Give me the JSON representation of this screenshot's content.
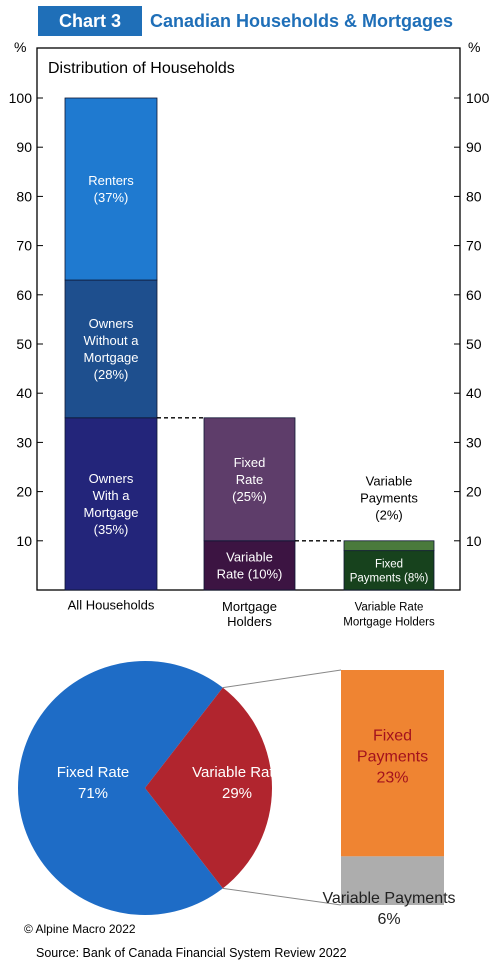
{
  "header": {
    "badge": "Chart 3",
    "title": "Canadian Households & Mortgages"
  },
  "colors": {
    "renters": "#1f7ad0",
    "owners_without": "#1e4f8e",
    "owners_with": "#23257a",
    "fixed_rate_bar": "#5e3d6a",
    "variable_rate_bar": "#3c1442",
    "variable_payments_bar": "#4a7a3c",
    "fixed_payments_bar": "#17421d",
    "pie_fixed": "#1e6cc6",
    "pie_variable": "#b1252e",
    "fixed_payments_block": "#ef8432",
    "variable_payments_block": "#adadad",
    "fixed_payments_text": "#a3121d",
    "title_blue": "#1f6fb8"
  },
  "chart_data": [
    {
      "type": "bar",
      "stacked": true,
      "title": "Distribution of Households",
      "ylabel_left": "%",
      "ylabel_right": "%",
      "ylim": [
        0,
        100
      ],
      "yticks": [
        10,
        20,
        30,
        40,
        50,
        60,
        70,
        80,
        90,
        100
      ],
      "grid": false,
      "categories": [
        "All Households",
        "Mortgage Holders",
        "Variable Rate Mortgage Holders"
      ],
      "category_lines": [
        [
          "All Households"
        ],
        [
          "Mortgage",
          "Holders"
        ],
        [
          "Variable Rate",
          "Mortgage Holders"
        ]
      ],
      "segments": [
        {
          "category": 0,
          "name": "Owners With a Mortgage",
          "value": 35,
          "label_lines": [
            "Owners",
            "With a",
            "Mortgage",
            "(35%)"
          ],
          "color_key": "owners_with"
        },
        {
          "category": 0,
          "name": "Owners Without a Mortgage",
          "value": 28,
          "label_lines": [
            "Owners",
            "Without a",
            "Mortgage",
            "(28%)"
          ],
          "color_key": "owners_without"
        },
        {
          "category": 0,
          "name": "Renters",
          "value": 37,
          "label_lines": [
            "Renters",
            "(37%)"
          ],
          "color_key": "renters"
        },
        {
          "category": 1,
          "name": "Variable Rate",
          "value": 10,
          "label_lines": [
            "Variable",
            "Rate (10%)"
          ],
          "color_key": "variable_rate_bar"
        },
        {
          "category": 1,
          "name": "Fixed Rate",
          "value": 25,
          "label_lines": [
            "Fixed",
            "Rate",
            "(25%)"
          ],
          "color_key": "fixed_rate_bar"
        },
        {
          "category": 2,
          "name": "Fixed Payments",
          "value": 8,
          "label_lines": [
            "Fixed",
            "Payments (8%)"
          ],
          "color_key": "fixed_payments_bar"
        },
        {
          "category": 2,
          "name": "Variable Payments",
          "value": 2,
          "label_lines": [],
          "color_key": "variable_payments_bar"
        }
      ],
      "annotations": [
        {
          "lines": [
            "Variable",
            "Payments",
            "(2%)"
          ]
        }
      ]
    },
    {
      "type": "pie",
      "slices": [
        {
          "name": "Fixed Rate",
          "value": 71,
          "label_lines": [
            "Fixed Rate",
            "71%"
          ],
          "color_key": "pie_fixed"
        },
        {
          "name": "Variable Rate",
          "value": 29,
          "label_lines": [
            "Variable Rate",
            "29%"
          ],
          "color_key": "pie_variable"
        }
      ],
      "breakdown": [
        {
          "name": "Fixed Payments",
          "value": 23,
          "label_lines": [
            "Fixed",
            "Payments",
            "23%"
          ],
          "color_key": "fixed_payments_block"
        },
        {
          "name": "Variable Payments",
          "value": 6,
          "label_lines": [
            "Variable Payments",
            "6%"
          ],
          "color_key": "variable_payments_block"
        }
      ]
    }
  ],
  "footer": {
    "copyright": "© Alpine Macro 2022",
    "source": "Source: Bank of Canada Financial System Review 2022"
  }
}
